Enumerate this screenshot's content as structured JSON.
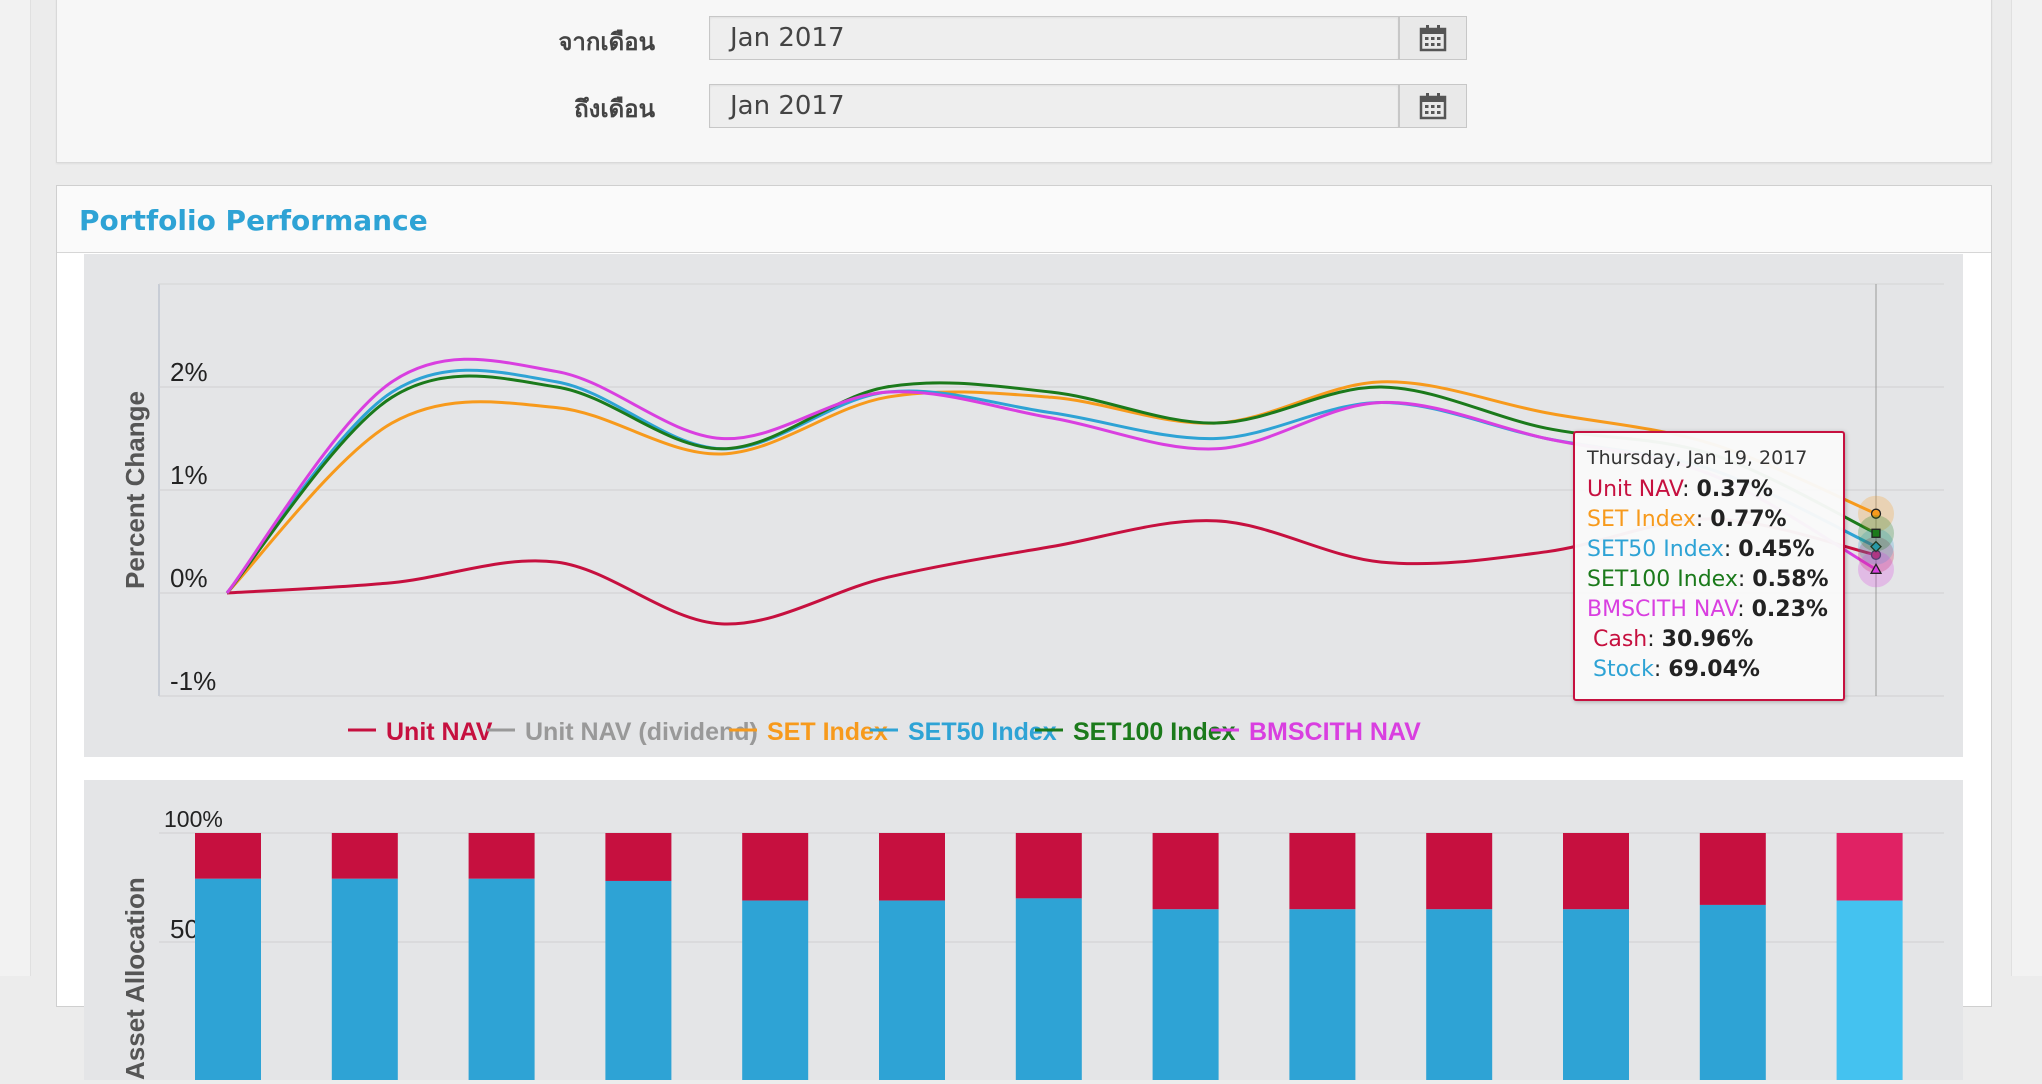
{
  "filter": {
    "from_label": "จากเดือน",
    "from_value": "Jan 2017",
    "to_label": "ถึงเดือน",
    "to_value": "Jan 2017",
    "calendar_icon": "calendar-icon"
  },
  "panel": {
    "title": "Portfolio Performance"
  },
  "chart_data": [
    {
      "type": "line",
      "title": "",
      "ylabel": "Percent Change",
      "xlabel": "",
      "ylim": [
        -1,
        3
      ],
      "yticks": [
        "-1%",
        "0%",
        "1%",
        "2%"
      ],
      "grid": true,
      "legend": "bottom",
      "series": [
        {
          "name": "Unit NAV",
          "color": "#c6103f",
          "values": [
            0,
            0.1,
            0.3,
            -0.3,
            0.15,
            0.45,
            0.7,
            0.3,
            0.4,
            0.72,
            0.37
          ]
        },
        {
          "name": "Unit NAV (dividend)",
          "color": "#999999",
          "values": []
        },
        {
          "name": "SET Index",
          "color": "#f79a1c",
          "values": [
            0,
            1.65,
            1.8,
            1.35,
            1.9,
            1.9,
            1.65,
            2.05,
            1.75,
            1.45,
            0.77
          ]
        },
        {
          "name": "SET50 Index",
          "color": "#2ea3d5",
          "values": [
            0,
            1.95,
            2.05,
            1.4,
            1.95,
            1.75,
            1.5,
            1.85,
            1.5,
            1.2,
            0.45
          ]
        },
        {
          "name": "SET100 Index",
          "color": "#1b7a1b",
          "values": [
            0,
            1.9,
            2.0,
            1.4,
            2.0,
            1.95,
            1.65,
            2.0,
            1.6,
            1.35,
            0.58
          ]
        },
        {
          "name": "BMSCITH NAV",
          "color": "#d93fe0",
          "values": [
            0,
            2.05,
            2.15,
            1.5,
            1.95,
            1.7,
            1.4,
            1.85,
            1.5,
            1.15,
            0.23
          ]
        }
      ]
    },
    {
      "type": "bar",
      "title": "",
      "ylabel": "Asset Allocation",
      "yticks": [
        "100%",
        "50%"
      ],
      "stacked": true,
      "series": [
        {
          "name": "Cash",
          "color": "#c6103f",
          "values": [
            21,
            21,
            21,
            22,
            31,
            31,
            30,
            35,
            35,
            35,
            35,
            33,
            31
          ]
        },
        {
          "name": "Stock",
          "color": "#2ea3d5",
          "values": [
            79,
            79,
            79,
            78,
            69,
            69,
            70,
            65,
            65,
            65,
            65,
            67,
            69
          ]
        }
      ]
    }
  ],
  "tooltip": {
    "date": "Thursday, Jan 19, 2017",
    "rows": [
      {
        "label": "Unit NAV",
        "value": "0.37%",
        "color": "#c6103f"
      },
      {
        "label": "SET Index",
        "value": "0.77%",
        "color": "#f79a1c"
      },
      {
        "label": "SET50 Index",
        "value": "0.45%",
        "color": "#2ea3d5"
      },
      {
        "label": "SET100 Index",
        "value": "0.58%",
        "color": "#1b7a1b"
      },
      {
        "label": "BMSCITH NAV",
        "value": "0.23%",
        "color": "#d93fe0"
      },
      {
        "label": "Cash",
        "value": "30.96%",
        "color": "#c6103f"
      },
      {
        "label": "Stock",
        "value": "69.04%",
        "color": "#2ea3d5"
      }
    ]
  }
}
